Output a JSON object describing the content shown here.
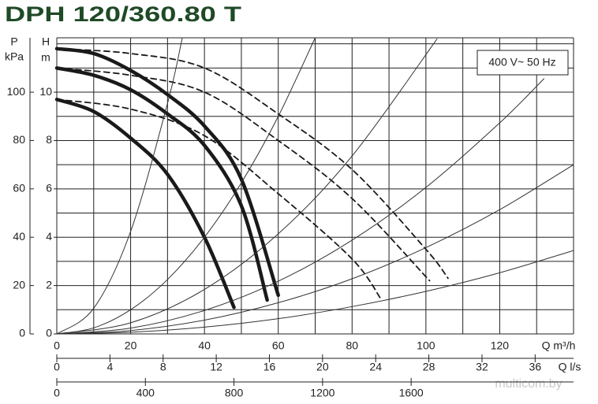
{
  "chart_data": {
    "type": "line",
    "title": "DPH 120/360.80 T",
    "annotation": "400 V~ 50 Hz",
    "watermark": "multicom.by",
    "x_label": "Q m³/h",
    "x2_label": "Q l/s",
    "y_label": "H",
    "y_unit": "m",
    "y2_label": "P",
    "y2_unit": "kPa",
    "xlim": [
      0,
      140
    ],
    "xticks": [
      0,
      20,
      40,
      60,
      80,
      100,
      120
    ],
    "xgrid": [
      0,
      10,
      20,
      30,
      40,
      50,
      60,
      70,
      80,
      90,
      100,
      110,
      120,
      130,
      140
    ],
    "x2lim": [
      0,
      38.89
    ],
    "x2ticks": [
      0,
      4,
      8,
      12,
      16,
      20,
      24,
      28,
      32,
      36
    ],
    "x3lim": [
      0,
      2333.3
    ],
    "x3ticks": [
      0,
      400,
      800,
      1200,
      1600
    ],
    "ylim": [
      0,
      12.25
    ],
    "yticks": [
      0,
      2,
      4,
      6,
      8,
      10
    ],
    "ygrid": [
      0,
      1,
      2,
      3,
      4,
      5,
      6,
      7,
      8,
      9,
      10,
      11,
      12
    ],
    "y2lim": [
      0,
      122.5
    ],
    "y2ticks": [
      0,
      20,
      40,
      60,
      80,
      100
    ],
    "series": [
      {
        "line_style": "solid",
        "color": "#1a1a1a",
        "x": [
          0,
          10,
          20,
          30,
          40,
          48
        ],
        "values": [
          9.7,
          9.2,
          8.1,
          6.6,
          4.0,
          1.1
        ]
      },
      {
        "line_style": "solid",
        "color": "#1a1a1a",
        "x": [
          0,
          10,
          20,
          30,
          40,
          50,
          57
        ],
        "values": [
          11.0,
          10.7,
          10.1,
          9.1,
          7.8,
          5.3,
          1.4
        ]
      },
      {
        "line_style": "solid",
        "color": "#1a1a1a",
        "x": [
          0,
          10,
          20,
          30,
          40,
          50,
          60
        ],
        "values": [
          11.8,
          11.6,
          10.9,
          9.9,
          8.6,
          6.4,
          1.6
        ]
      },
      {
        "line_style": "dashed",
        "color": "#1a1a1a",
        "x": [
          0,
          20,
          40,
          60,
          80,
          88
        ],
        "values": [
          9.7,
          9.3,
          8.2,
          5.8,
          3.1,
          1.4
        ]
      },
      {
        "line_style": "dashed",
        "color": "#1a1a1a",
        "x": [
          0,
          20,
          40,
          60,
          80,
          101
        ],
        "values": [
          11.0,
          10.7,
          10.0,
          8.0,
          5.6,
          2.2
        ]
      },
      {
        "line_style": "dashed",
        "color": "#1a1a1a",
        "x": [
          0,
          20,
          40,
          60,
          80,
          100,
          106
        ],
        "values": [
          11.8,
          11.6,
          11.0,
          9.1,
          6.8,
          3.5,
          2.3
        ]
      },
      {
        "line_style": "thin",
        "color": "#333333",
        "x": [
          0,
          10,
          20,
          30,
          34
        ],
        "values": [
          0,
          1.06,
          4.24,
          9.54,
          12.25
        ]
      },
      {
        "line_style": "thin",
        "color": "#333333",
        "x": [
          0,
          10,
          20,
          30,
          40,
          50,
          60,
          70
        ],
        "values": [
          0,
          0.25,
          1.0,
          2.25,
          4.0,
          6.25,
          9.0,
          12.25
        ]
      },
      {
        "line_style": "thin",
        "color": "#333333",
        "x": [
          0,
          20,
          40,
          60,
          80,
          103
        ],
        "values": [
          0,
          0.46,
          1.84,
          4.14,
          7.36,
          12.2
        ]
      },
      {
        "line_style": "thin",
        "color": "#333333",
        "x": [
          0,
          20,
          40,
          60,
          80,
          100,
          120,
          132
        ],
        "values": [
          0,
          0.24,
          0.97,
          2.18,
          3.88,
          6.06,
          8.73,
          10.56
        ]
      },
      {
        "line_style": "thin",
        "color": "#333333",
        "x": [
          0,
          20,
          40,
          60,
          80,
          100,
          120,
          140
        ],
        "values": [
          0,
          0.14,
          0.57,
          1.29,
          2.28,
          3.57,
          5.14,
          7.0
        ]
      },
      {
        "line_style": "thin",
        "color": "#333333",
        "x": [
          0,
          20,
          40,
          60,
          80,
          100,
          120,
          140
        ],
        "values": [
          0,
          0.07,
          0.28,
          0.63,
          1.13,
          1.76,
          2.53,
          3.45
        ]
      }
    ]
  }
}
